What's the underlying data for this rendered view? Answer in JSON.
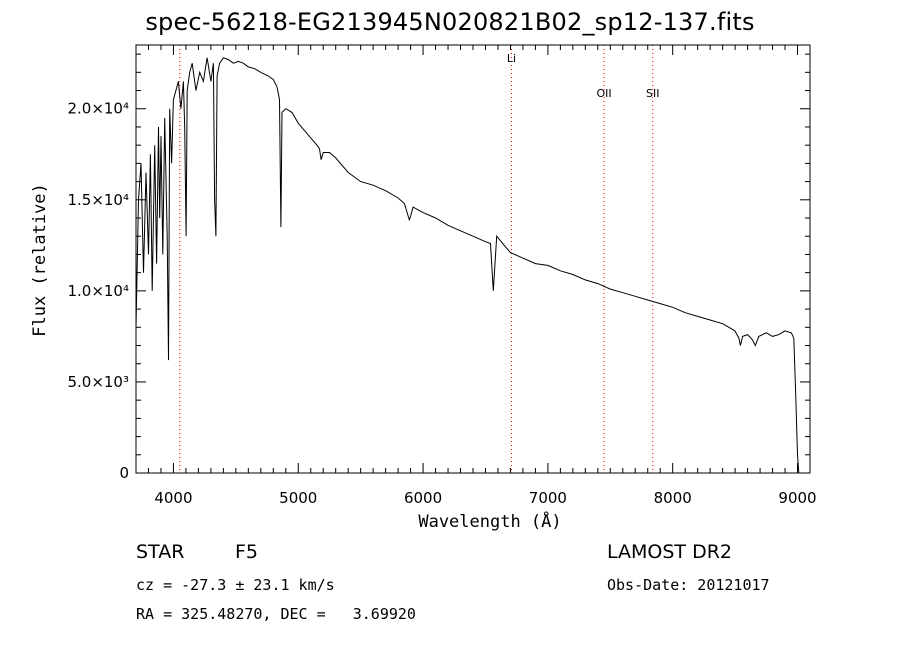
{
  "chart_data": {
    "type": "line",
    "title": "spec-56218-EG213945N020821B02_sp12-137.fits",
    "xlabel": "Wavelength (Å)",
    "ylabel": "Flux (relative)",
    "xlim": [
      3700,
      9100
    ],
    "ylim": [
      0,
      23500
    ],
    "x_ticks": [
      {
        "value": 4000,
        "label": "4000"
      },
      {
        "value": 5000,
        "label": "5000"
      },
      {
        "value": 6000,
        "label": "6000"
      },
      {
        "value": 7000,
        "label": "7000"
      },
      {
        "value": 8000,
        "label": "8000"
      },
      {
        "value": 9000,
        "label": "9000"
      }
    ],
    "y_ticks": [
      {
        "value": 0,
        "label": "0"
      },
      {
        "value": 5000,
        "label": "5.0×10³"
      },
      {
        "value": 10000,
        "label": "1.0×10⁴"
      },
      {
        "value": 15000,
        "label": "1.5×10⁴"
      },
      {
        "value": 20000,
        "label": "2.0×10⁴"
      }
    ],
    "grid": false,
    "series": [
      {
        "x": [
          3700,
          3720,
          3740,
          3760,
          3780,
          3800,
          3815,
          3830,
          3850,
          3865,
          3880,
          3890,
          3900,
          3915,
          3930,
          3950,
          3960,
          3970,
          3985,
          4000,
          4020,
          4040,
          4060,
          4080,
          4090,
          4101,
          4110,
          4130,
          4150,
          4180,
          4210,
          4240,
          4270,
          4300,
          4320,
          4330,
          4340,
          4350,
          4370,
          4400,
          4440,
          4480,
          4520,
          4560,
          4600,
          4650,
          4700,
          4760,
          4800,
          4830,
          4850,
          4861,
          4870,
          4900,
          4950,
          5000,
          5050,
          5100,
          5150,
          5170,
          5183,
          5200,
          5250,
          5300,
          5400,
          5500,
          5600,
          5700,
          5800,
          5850,
          5890,
          5896,
          5920,
          6000,
          6100,
          6200,
          6300,
          6400,
          6500,
          6540,
          6563,
          6590,
          6650,
          6700,
          6800,
          6900,
          7000,
          7100,
          7200,
          7300,
          7400,
          7500,
          7600,
          7700,
          7800,
          7900,
          8000,
          8100,
          8200,
          8300,
          8400,
          8450,
          8498,
          8530,
          8542,
          8560,
          8600,
          8640,
          8662,
          8690,
          8750,
          8800,
          8850,
          8900,
          8950,
          8970,
          8985,
          9000,
          9010
        ],
        "y": [
          8000,
          15000,
          17000,
          11000,
          16500,
          12000,
          17500,
          10000,
          18000,
          11500,
          19000,
          14000,
          18500,
          12000,
          19500,
          13000,
          6200,
          20000,
          17000,
          20500,
          21000,
          21500,
          20000,
          21500,
          19000,
          13000,
          21000,
          22000,
          22500,
          21000,
          22000,
          21500,
          22800,
          21500,
          22500,
          15000,
          13000,
          21800,
          22500,
          22800,
          22700,
          22500,
          22600,
          22500,
          22300,
          22200,
          22000,
          21800,
          21600,
          21200,
          20500,
          13500,
          19800,
          20000,
          19800,
          19200,
          18800,
          18400,
          18000,
          17800,
          17200,
          17600,
          17600,
          17300,
          16500,
          16000,
          15800,
          15500,
          15100,
          14800,
          13900,
          14000,
          14600,
          14300,
          14000,
          13600,
          13300,
          13000,
          12700,
          12600,
          10000,
          13000,
          12500,
          12100,
          11800,
          11500,
          11400,
          11100,
          10900,
          10600,
          10400,
          10100,
          9900,
          9700,
          9500,
          9300,
          9100,
          8800,
          8600,
          8400,
          8200,
          8000,
          7800,
          7400,
          7000,
          7500,
          7600,
          7300,
          7000,
          7500,
          7700,
          7500,
          7600,
          7800,
          7700,
          7400,
          4500,
          1000,
          0
        ]
      }
    ],
    "line_markers": [
      {
        "label": "Li",
        "x": 6708
      },
      {
        "label": "OII",
        "x": 7450
      },
      {
        "label": "SII",
        "x": 7840
      },
      {
        "label": "",
        "x": 4050
      }
    ],
    "colors": {
      "spectrum": "#000000",
      "marker": "#ff0000"
    }
  },
  "info": {
    "object_class": "STAR",
    "subclass": "F5",
    "survey": "LAMOST DR2",
    "velocity": "cz = -27.3 ± 23.1 km/s",
    "obs_date": "Obs-Date: 20121017",
    "coordinates": "RA = 325.48270, DEC =   3.69920"
  }
}
